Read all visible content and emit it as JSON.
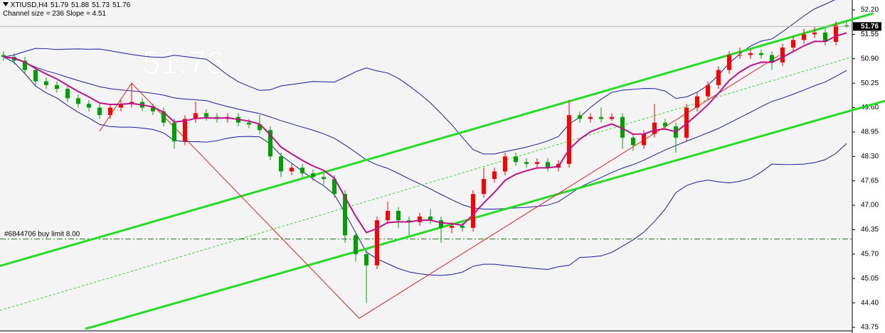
{
  "chart_data": {
    "type": "candlestick",
    "symbol": "XTIUSD,H4",
    "channel_info": "Channel size = 236 Slope = 4.51",
    "order_label": "#6844706 buy limit 8.00",
    "order_price": 46.1,
    "up_color": "#ff0000",
    "down_color": "#00a000",
    "ylim": [
      43.75,
      52.2
    ],
    "yticks": [
      {
        "value": 52.2,
        "label": "52.20"
      },
      {
        "value": 51.55,
        "label": "51.55"
      },
      {
        "value": 50.9,
        "label": "50.90"
      },
      {
        "value": 50.25,
        "label": "50.25"
      },
      {
        "value": 49.6,
        "label": "49.60"
      },
      {
        "value": 48.95,
        "label": "48.95"
      },
      {
        "value": 48.3,
        "label": "48.30"
      },
      47.65,
      {
        "value": 47.0,
        "label": "47.00"
      },
      46.35,
      {
        "value": 45.7,
        "label": "45.70"
      },
      45.05,
      {
        "value": 44.4,
        "label": "44.40"
      },
      43.75
    ],
    "open": [
      51.0,
      50.95,
      50.85,
      50.6,
      50.3,
      50.2,
      50.1,
      49.85,
      49.7,
      49.6,
      49.4,
      49.6,
      49.7,
      49.75,
      49.6,
      49.5,
      49.2,
      48.7,
      49.3,
      49.45,
      49.35,
      49.3,
      49.35,
      49.2,
      49.15,
      49.0,
      48.3,
      47.9,
      48.0,
      47.85,
      47.75,
      47.7,
      47.3,
      46.2,
      45.7,
      45.4,
      46.6,
      46.85,
      46.6,
      46.55,
      46.7,
      46.6,
      46.4,
      46.45,
      46.4,
      47.3,
      47.7,
      47.9,
      48.3,
      48.15,
      48.1,
      48.15,
      48.0,
      48.1,
      49.4,
      49.3,
      49.35,
      49.3,
      49.35,
      48.8,
      48.6,
      48.9,
      49.2,
      49.1,
      48.8,
      49.6,
      49.9,
      50.2,
      50.6,
      51.0,
      51.0,
      51.05,
      51.0,
      50.8,
      51.2,
      51.4,
      51.55,
      51.6,
      51.35,
      51.79
    ],
    "high": [
      51.1,
      51.05,
      50.95,
      50.7,
      50.4,
      50.3,
      50.2,
      49.95,
      49.8,
      49.7,
      49.7,
      49.8,
      50.25,
      49.85,
      49.7,
      49.6,
      49.3,
      49.4,
      49.75,
      49.55,
      49.45,
      49.45,
      49.45,
      49.3,
      49.4,
      49.1,
      48.4,
      48.1,
      48.1,
      47.95,
      47.85,
      47.8,
      47.4,
      46.3,
      45.8,
      46.7,
      47.1,
      46.95,
      46.7,
      46.8,
      46.9,
      46.7,
      46.55,
      46.55,
      47.4,
      48.0,
      48.0,
      48.4,
      48.4,
      48.25,
      48.25,
      48.25,
      48.2,
      49.8,
      49.5,
      49.45,
      49.6,
      49.45,
      49.45,
      48.9,
      49.0,
      49.7,
      49.3,
      49.2,
      49.7,
      50.0,
      50.3,
      50.7,
      51.1,
      51.2,
      51.15,
      51.15,
      51.1,
      51.3,
      51.5,
      51.7,
      51.75,
      51.7,
      51.9,
      51.88
    ],
    "low": [
      50.85,
      50.75,
      50.5,
      50.2,
      50.1,
      50.0,
      49.75,
      49.6,
      49.5,
      49.3,
      49.3,
      49.5,
      49.6,
      49.5,
      49.4,
      49.1,
      48.5,
      48.6,
      49.2,
      49.25,
      49.2,
      49.2,
      49.1,
      49.05,
      48.9,
      48.2,
      47.75,
      47.8,
      47.75,
      47.65,
      47.55,
      47.2,
      46.0,
      45.5,
      44.4,
      45.3,
      46.5,
      46.4,
      46.2,
      46.45,
      46.5,
      46.0,
      46.25,
      46.3,
      46.3,
      47.2,
      47.6,
      47.8,
      48.05,
      48.0,
      48.0,
      47.9,
      47.9,
      48.0,
      49.2,
      49.2,
      49.2,
      49.25,
      48.5,
      48.45,
      48.5,
      48.8,
      49.0,
      48.4,
      48.7,
      49.5,
      49.8,
      50.1,
      50.5,
      50.9,
      50.9,
      50.9,
      50.6,
      50.7,
      51.1,
      51.3,
      51.45,
      51.25,
      51.25,
      51.73
    ],
    "close": [
      50.95,
      50.85,
      50.6,
      50.3,
      50.2,
      50.1,
      49.85,
      49.7,
      49.6,
      49.4,
      49.6,
      49.7,
      49.75,
      49.6,
      49.5,
      49.2,
      48.7,
      49.3,
      49.45,
      49.35,
      49.3,
      49.35,
      49.2,
      49.15,
      49.0,
      48.3,
      47.9,
      48.0,
      47.85,
      47.75,
      47.7,
      47.3,
      46.2,
      45.7,
      45.4,
      46.6,
      46.85,
      46.6,
      46.55,
      46.7,
      46.6,
      46.4,
      46.45,
      46.4,
      47.3,
      47.7,
      47.9,
      48.3,
      48.15,
      48.1,
      48.15,
      48.0,
      48.1,
      49.4,
      49.3,
      49.35,
      49.3,
      49.35,
      48.8,
      48.6,
      48.9,
      49.2,
      49.1,
      48.8,
      49.6,
      49.9,
      50.2,
      50.6,
      51.0,
      51.0,
      51.05,
      51.0,
      50.8,
      51.2,
      51.4,
      51.55,
      51.6,
      51.35,
      51.79,
      51.76
    ],
    "lines": [
      {
        "x": [
          -0.5,
          81.5
        ],
        "y": [
          45.37,
          52.11
        ],
        "color": "#22dd22",
        "width": 3
      },
      {
        "x": [
          7.67,
          82.6
        ],
        "y": [
          43.71,
          49.78
        ],
        "color": "#22dd22",
        "width": 3
      },
      {
        "x": [
          -0.33,
          79.53
        ],
        "y": [
          44.2,
          50.95
        ],
        "color": "#22dd22",
        "width": 1,
        "dash": true
      },
      {
        "x": [
          9,
          12,
          33.33,
          72.67
        ],
        "y": [
          48.97,
          50.25,
          43.99,
          50.99
        ],
        "color": "#e02020",
        "width": 1
      }
    ]
  }
}
